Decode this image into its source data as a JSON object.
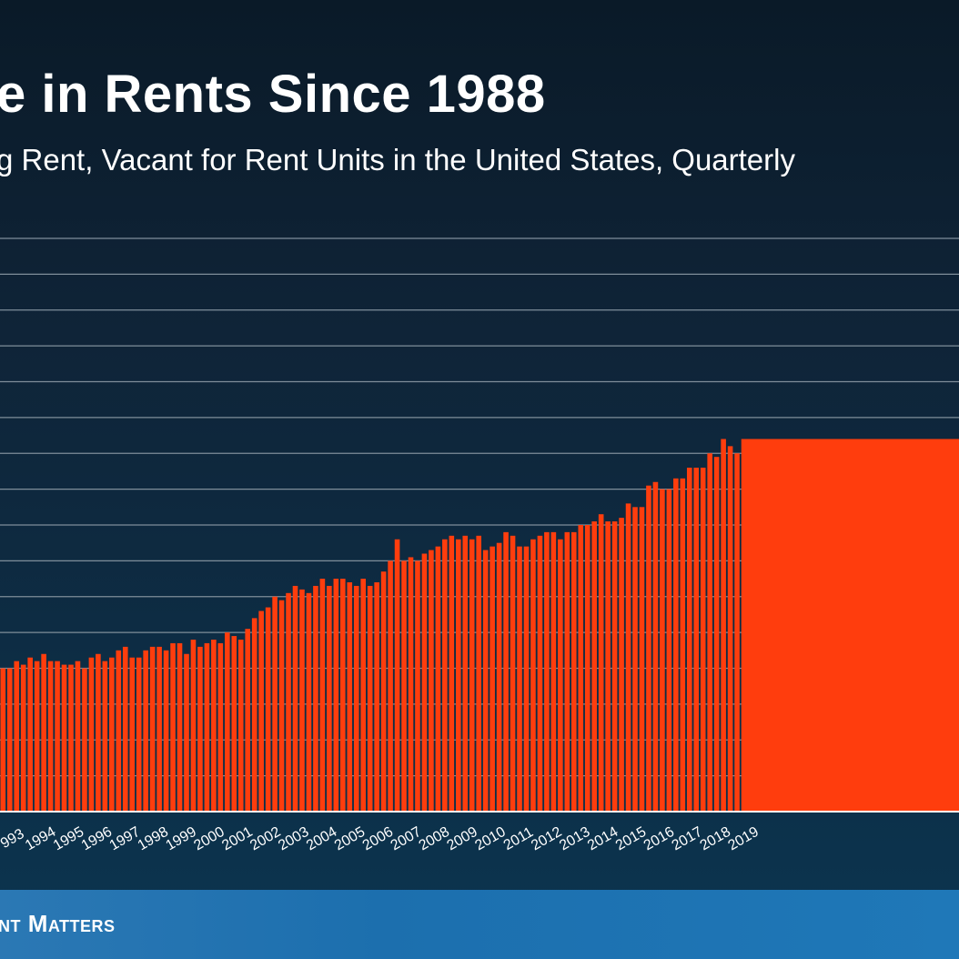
{
  "header": {
    "title": "e in Rents Since 1988",
    "subtitle": "g Rent, Vacant for Rent Units in the United States, Quarterly"
  },
  "footer": {
    "brand": "nt Matters"
  },
  "colors": {
    "bar": "#ff3d0d",
    "gridline": "#7f8e9a",
    "background": "#0e2236",
    "footer": "#1f74b3"
  },
  "chart_data": {
    "type": "bar",
    "title": "e in Rents Since 1988",
    "subtitle": "g Rent, Vacant for Rent Units in the United States, Quarterly",
    "grid": true,
    "ylim": [
      0,
      16
    ],
    "x_tick_labels": [
      "993",
      "1994",
      "1995",
      "1996",
      "1997",
      "1998",
      "1999",
      "2000",
      "2001",
      "2002",
      "2003",
      "2004",
      "2005",
      "2006",
      "2007",
      "2008",
      "2009",
      "2010",
      "2011",
      "2012",
      "2013",
      "2014",
      "2015",
      "2016",
      "2017",
      "2018",
      "2019"
    ],
    "series": [
      {
        "values": [
          4.0,
          4.0,
          4.2,
          4.1,
          4.3,
          4.2,
          4.4,
          4.2,
          4.2,
          4.1,
          4.1,
          4.2,
          4.0,
          4.3,
          4.4,
          4.2,
          4.3,
          4.5,
          4.6,
          4.3,
          4.3,
          4.5,
          4.6,
          4.6,
          4.5,
          4.7,
          4.7,
          4.4,
          4.8,
          4.6,
          4.7,
          4.8,
          4.7,
          5.0,
          4.9,
          4.8,
          5.1,
          5.4,
          5.6,
          5.7,
          6.0,
          5.9,
          6.1,
          6.3,
          6.2,
          6.1,
          6.3,
          6.5,
          6.3,
          6.5,
          6.5,
          6.4,
          6.3,
          6.5,
          6.3,
          6.4,
          6.7,
          7.0,
          7.6,
          7.0,
          7.1,
          7.0,
          7.2,
          7.3,
          7.4,
          7.6,
          7.7,
          7.6,
          7.7,
          7.6,
          7.7,
          7.3,
          7.4,
          7.5,
          7.8,
          7.7,
          7.4,
          7.4,
          7.6,
          7.7,
          7.8,
          7.8,
          7.6,
          7.8,
          7.8,
          8.0,
          8.0,
          8.1,
          8.3,
          8.1,
          8.1,
          8.2,
          8.6,
          8.5,
          8.5,
          9.1,
          9.2,
          9.0,
          9.0,
          9.3,
          9.3,
          9.6,
          9.6,
          9.6,
          10.0,
          9.9,
          10.4,
          10.2,
          10.0
        ],
        "trailing_partial_value": 10.4
      }
    ]
  }
}
